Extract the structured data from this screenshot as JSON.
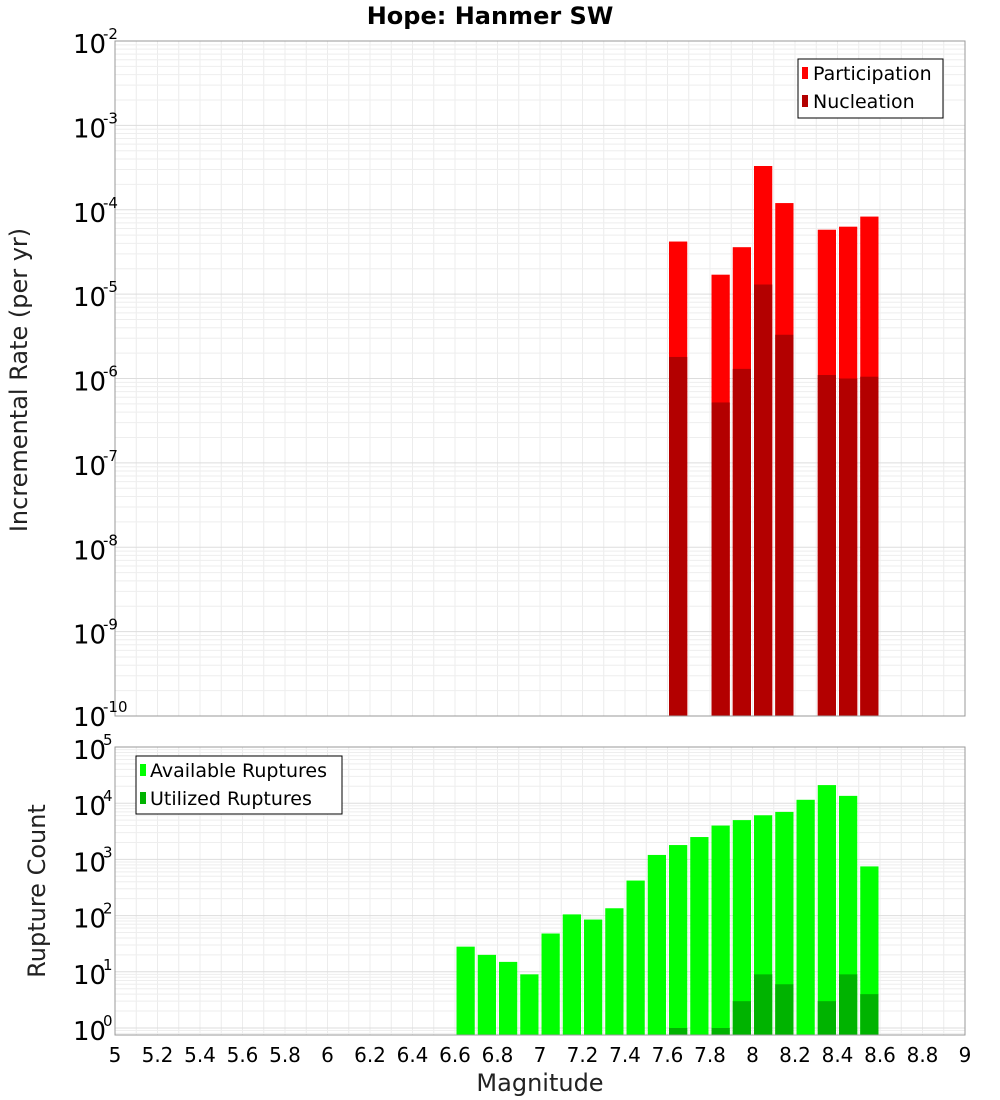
{
  "chart_data": [
    {
      "type": "bar",
      "title": "Hope: Hanmer SW",
      "ylabel": "Incremental Rate (per yr)",
      "y_scale": "log",
      "ylim": [
        1e-10,
        0.01
      ],
      "xlim": [
        5,
        9
      ],
      "y_tick_exponents": [
        "-2",
        "-3",
        "-4",
        "-5",
        "-6",
        "-7",
        "-8",
        "-9",
        "-10"
      ],
      "y_tick_base": "10",
      "grid": true,
      "legend_position": "top-right",
      "bin_width": 0.1,
      "series": [
        {
          "name": "Participation",
          "color": "#ff0000",
          "points": [
            {
              "x": 7.65,
              "y": 4.2e-05
            },
            {
              "x": 7.85,
              "y": 1.7e-05
            },
            {
              "x": 7.95,
              "y": 3.6e-05
            },
            {
              "x": 8.05,
              "y": 0.00033
            },
            {
              "x": 8.15,
              "y": 0.00012
            },
            {
              "x": 8.35,
              "y": 5.8e-05
            },
            {
              "x": 8.45,
              "y": 6.3e-05
            },
            {
              "x": 8.55,
              "y": 8.3e-05
            }
          ]
        },
        {
          "name": "Nucleation",
          "color": "#b30000",
          "points": [
            {
              "x": 7.65,
              "y": 1.8e-06
            },
            {
              "x": 7.85,
              "y": 5.2e-07
            },
            {
              "x": 7.95,
              "y": 1.3e-06
            },
            {
              "x": 8.05,
              "y": 1.3e-05
            },
            {
              "x": 8.15,
              "y": 3.3e-06
            },
            {
              "x": 8.35,
              "y": 1.1e-06
            },
            {
              "x": 8.45,
              "y": 1e-06
            },
            {
              "x": 8.55,
              "y": 1.05e-06
            }
          ]
        }
      ]
    },
    {
      "type": "bar",
      "xlabel": "Magnitude",
      "ylabel": "Rupture Count",
      "y_scale": "log",
      "ylim": [
        0.75,
        100000.0
      ],
      "xlim": [
        5,
        9
      ],
      "y_tick_exponents": [
        "5",
        "4",
        "3",
        "2",
        "1",
        "0"
      ],
      "y_tick_base": "10",
      "x_tick_labels": [
        "5",
        "5.2",
        "5.4",
        "5.6",
        "5.8",
        "6",
        "6.2",
        "6.4",
        "6.6",
        "6.8",
        "7",
        "7.2",
        "7.4",
        "7.6",
        "7.8",
        "8",
        "8.2",
        "8.4",
        "8.6",
        "8.8",
        "9"
      ],
      "grid": true,
      "legend_position": "top-left",
      "bin_width": 0.1,
      "series": [
        {
          "name": "Available Ruptures",
          "color": "#00ff00",
          "points": [
            {
              "x": 6.65,
              "y": 28
            },
            {
              "x": 6.75,
              "y": 20
            },
            {
              "x": 6.85,
              "y": 15
            },
            {
              "x": 6.95,
              "y": 9
            },
            {
              "x": 7.05,
              "y": 48
            },
            {
              "x": 7.15,
              "y": 105
            },
            {
              "x": 7.25,
              "y": 85
            },
            {
              "x": 7.35,
              "y": 135
            },
            {
              "x": 7.45,
              "y": 420
            },
            {
              "x": 7.55,
              "y": 1200
            },
            {
              "x": 7.65,
              "y": 1800
            },
            {
              "x": 7.75,
              "y": 2500
            },
            {
              "x": 7.85,
              "y": 4000
            },
            {
              "x": 7.95,
              "y": 5000
            },
            {
              "x": 8.05,
              "y": 6100
            },
            {
              "x": 8.15,
              "y": 7000
            },
            {
              "x": 8.25,
              "y": 11500
            },
            {
              "x": 8.35,
              "y": 21000
            },
            {
              "x": 8.45,
              "y": 13500
            },
            {
              "x": 8.55,
              "y": 750
            }
          ]
        },
        {
          "name": "Utilized Ruptures",
          "color": "#00b300",
          "points": [
            {
              "x": 7.65,
              "y": 1
            },
            {
              "x": 7.85,
              "y": 1
            },
            {
              "x": 7.95,
              "y": 3
            },
            {
              "x": 8.05,
              "y": 9
            },
            {
              "x": 8.15,
              "y": 6
            },
            {
              "x": 8.35,
              "y": 3
            },
            {
              "x": 8.45,
              "y": 9
            },
            {
              "x": 8.55,
              "y": 4
            }
          ]
        }
      ]
    }
  ]
}
